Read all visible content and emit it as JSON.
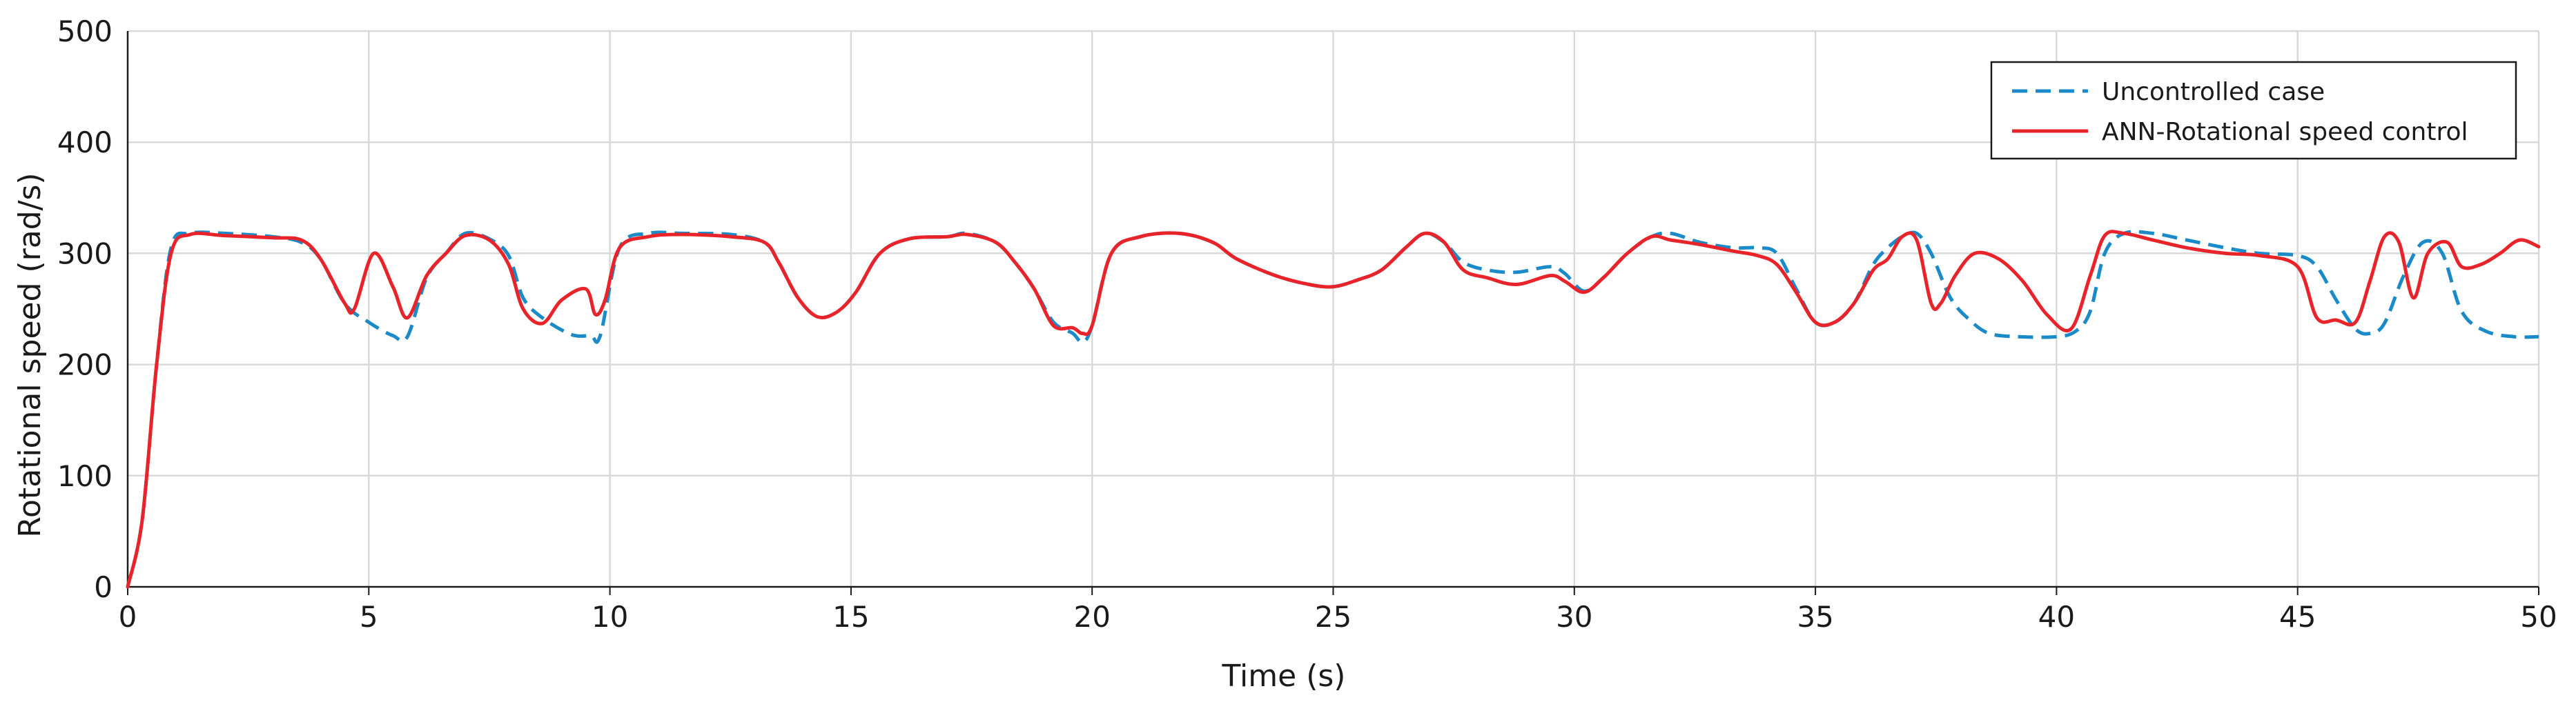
{
  "chart_data": {
    "type": "line",
    "title": "",
    "xlabel": "Time (s)",
    "ylabel": "Rotational speed (rad/s)",
    "xlim": [
      0,
      50
    ],
    "ylim": [
      0,
      500
    ],
    "xticks": [
      0,
      5,
      10,
      15,
      20,
      25,
      30,
      35,
      40,
      45,
      50
    ],
    "yticks": [
      0,
      100,
      200,
      300,
      400,
      500
    ],
    "grid": true,
    "legend_position": "top-right",
    "series": [
      {
        "name": "Uncontrolled case",
        "color": "#1a8ac8",
        "dash": "dashed",
        "x": [
          0,
          0.3,
          0.6,
          0.9,
          1.3,
          2,
          3,
          3.6,
          4,
          4.5,
          5,
          5.5,
          5.8,
          6.2,
          6.6,
          7,
          7.5,
          7.9,
          8.2,
          8.6,
          9.2,
          9.6,
          9.8,
          10.2,
          10.8,
          11.5,
          12.5,
          13.2,
          13.5,
          13.9,
          14.3,
          14.7,
          15.1,
          15.6,
          16.2,
          17,
          17.4,
          18,
          18.4,
          18.8,
          19.2,
          19.6,
          19.8,
          20,
          20.4,
          21,
          21.8,
          22.5,
          23,
          23.8,
          24.5,
          25,
          25.5,
          26,
          26.5,
          26.9,
          27.3,
          27.7,
          28.2,
          28.8,
          29.5,
          29.8,
          30.2,
          30.6,
          31.1,
          31.6,
          32,
          32.6,
          33.3,
          33.8,
          34.2,
          34.6,
          35,
          35.4,
          35.8,
          36.2,
          36.5,
          36.8,
          37.1,
          37.4,
          37.8,
          38.2,
          38.6,
          39.2,
          40,
          40.4,
          40.7,
          41,
          41.4,
          42,
          42.7,
          43.5,
          44.2,
          45,
          45.4,
          45.8,
          46.2,
          46.5,
          46.8,
          47.2,
          47.6,
          48,
          48.4,
          48.9,
          49.5,
          50
        ],
        "values": [
          0,
          60,
          200,
          305,
          318,
          318,
          315,
          310,
          295,
          255,
          238,
          226,
          225,
          278,
          300,
          318,
          313,
          298,
          260,
          242,
          227,
          226,
          226,
          305,
          318,
          318,
          317,
          310,
          292,
          260,
          243,
          247,
          265,
          300,
          313,
          315,
          318,
          310,
          292,
          268,
          238,
          228,
          220,
          235,
          300,
          315,
          318,
          310,
          295,
          280,
          272,
          270,
          276,
          285,
          305,
          318,
          310,
          292,
          285,
          283,
          288,
          282,
          266,
          278,
          300,
          315,
          318,
          310,
          305,
          305,
          300,
          268,
          238,
          238,
          255,
          290,
          305,
          315,
          318,
          300,
          260,
          240,
          228,
          225,
          225,
          230,
          248,
          300,
          318,
          318,
          312,
          305,
          300,
          298,
          288,
          258,
          232,
          228,
          237,
          280,
          310,
          300,
          248,
          230,
          225,
          225
        ]
      },
      {
        "name": "ANN-Rotational speed control",
        "color": "#e8242a",
        "dash": "solid",
        "x": [
          0,
          0.3,
          0.6,
          0.9,
          1.3,
          2,
          3,
          3.6,
          4,
          4.5,
          4.7,
          5.1,
          5.5,
          5.8,
          6.2,
          6.6,
          7,
          7.5,
          7.9,
          8.2,
          8.6,
          9,
          9.5,
          9.7,
          9.9,
          10.2,
          10.8,
          11.5,
          12.5,
          13.2,
          13.5,
          13.9,
          14.3,
          14.7,
          15.1,
          15.6,
          16.2,
          17,
          17.4,
          18,
          18.4,
          18.8,
          19.2,
          19.6,
          19.8,
          20,
          20.4,
          21,
          21.8,
          22.5,
          23,
          23.8,
          24.5,
          25,
          25.5,
          26,
          26.5,
          26.9,
          27.3,
          27.7,
          28.2,
          28.8,
          29.5,
          29.8,
          30.2,
          30.6,
          31.1,
          31.6,
          32,
          32.6,
          33.3,
          33.8,
          34.2,
          34.6,
          35,
          35.4,
          35.8,
          36.2,
          36.5,
          36.8,
          37.1,
          37.4,
          37.6,
          37.9,
          38.3,
          38.8,
          39.3,
          39.8,
          40.3,
          40.7,
          41,
          41.4,
          42,
          42.7,
          43.5,
          44.2,
          45,
          45.4,
          45.8,
          46.2,
          46.5,
          46.8,
          47.1,
          47.4,
          47.7,
          48.1,
          48.4,
          48.8,
          49.2,
          49.6,
          50
        ],
        "values": [
          0,
          60,
          200,
          300,
          317,
          316,
          314,
          312,
          295,
          255,
          250,
          300,
          270,
          242,
          280,
          300,
          316,
          312,
          290,
          250,
          237,
          258,
          268,
          245,
          258,
          305,
          315,
          317,
          315,
          310,
          292,
          260,
          243,
          247,
          265,
          300,
          313,
          315,
          317,
          310,
          292,
          268,
          235,
          233,
          228,
          235,
          300,
          315,
          318,
          310,
          295,
          280,
          272,
          270,
          276,
          285,
          305,
          318,
          310,
          285,
          278,
          272,
          280,
          275,
          265,
          278,
          300,
          315,
          312,
          308,
          302,
          298,
          290,
          265,
          238,
          238,
          255,
          285,
          295,
          315,
          312,
          255,
          255,
          280,
          300,
          295,
          275,
          245,
          232,
          280,
          316,
          318,
          312,
          305,
          300,
          298,
          288,
          242,
          240,
          238,
          275,
          315,
          310,
          260,
          300,
          310,
          288,
          290,
          300,
          312,
          306
        ]
      }
    ]
  }
}
